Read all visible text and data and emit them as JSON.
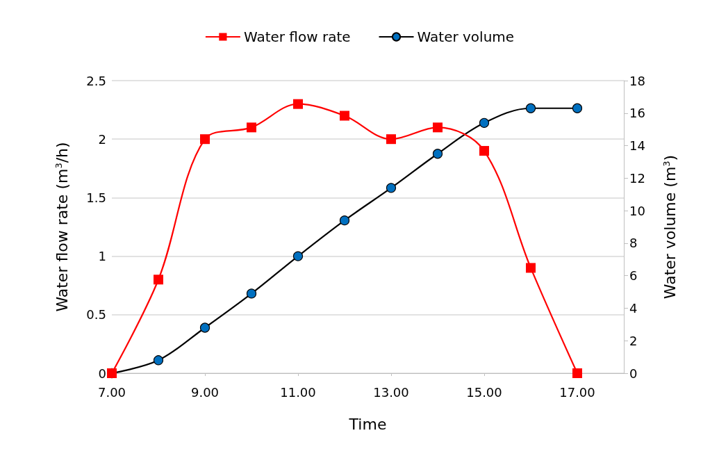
{
  "chart_data": {
    "type": "line",
    "xlabel": "Time",
    "ylabel": "Water flow rate (m$^{3}$/h)",
    "y2label": "Water volume (m$^{3}$)",
    "x": [
      7,
      8,
      9,
      10,
      11,
      12,
      13,
      14,
      15,
      16,
      17
    ],
    "series": [
      {
        "name": "Water flow rate",
        "color": "#ff0000",
        "marker": "square",
        "values": [
          0,
          0.8,
          2,
          2.1,
          2.3,
          2.2,
          2,
          2.1,
          1.9,
          0.9,
          0
        ]
      },
      {
        "name": "Water volume",
        "color": "#000000",
        "marker": "circle",
        "axis": "y2",
        "values": [
          0,
          0.8,
          2.8,
          4.9,
          7.2,
          9.4,
          11.4,
          13.5,
          15.4,
          16.3,
          16.3
        ]
      }
    ],
    "xlim": [
      7,
      18
    ],
    "xticks": [
      {
        "value": 7,
        "label": "7.00"
      },
      {
        "value": 9,
        "label": "9.00"
      },
      {
        "value": 11,
        "label": "11.00"
      },
      {
        "value": 13,
        "label": "13.00"
      },
      {
        "value": 15,
        "label": "15.00"
      },
      {
        "value": 17,
        "label": "17.00"
      }
    ],
    "ylim": [
      0,
      2.5
    ],
    "yticks": [
      0,
      0.5,
      1,
      1.5,
      2,
      2.5
    ],
    "y2lim": [
      0,
      18
    ],
    "y2ticks": [
      0,
      2,
      4,
      6,
      8,
      10,
      12,
      14,
      16,
      18
    ],
    "grid": "y",
    "legend": "top"
  }
}
